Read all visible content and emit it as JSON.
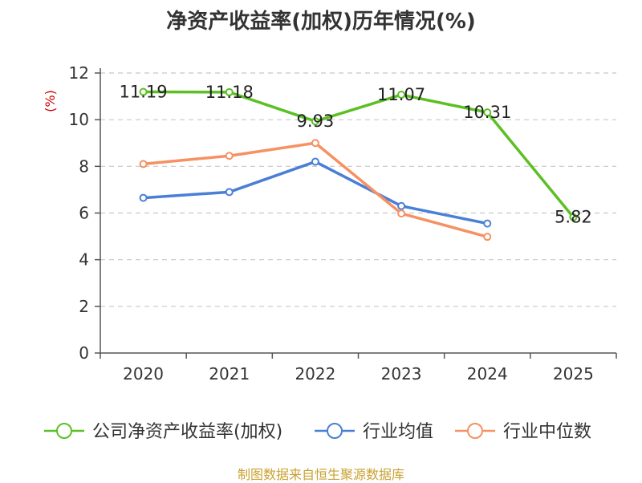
{
  "chart_data": {
    "type": "line",
    "title": "净资产收益率(加权)历年情况(%)",
    "ylabel": "(%)",
    "xlabel": "",
    "categories": [
      "2020",
      "2021",
      "2022",
      "2023",
      "2024",
      "2025"
    ],
    "ylim": [
      0,
      12
    ],
    "yticks": [
      0,
      2,
      4,
      6,
      8,
      10,
      12
    ],
    "grid": true,
    "legend_position": "bottom",
    "series": [
      {
        "name": "公司净资产收益率(加权)",
        "color": "#5cc024",
        "values": [
          11.19,
          11.18,
          9.93,
          11.07,
          10.31,
          5.82
        ],
        "labels": [
          "11.19",
          "11.18",
          "9.93",
          "11.07",
          "10.31",
          "5.82"
        ]
      },
      {
        "name": "行业均值",
        "color": "#4a7fd6",
        "values": [
          6.65,
          6.9,
          8.2,
          6.3,
          5.55,
          null
        ]
      },
      {
        "name": "行业中位数",
        "color": "#f59162",
        "values": [
          8.1,
          8.45,
          9.0,
          5.98,
          4.98,
          null
        ]
      }
    ],
    "source": "制图数据来自恒生聚源数据库"
  }
}
